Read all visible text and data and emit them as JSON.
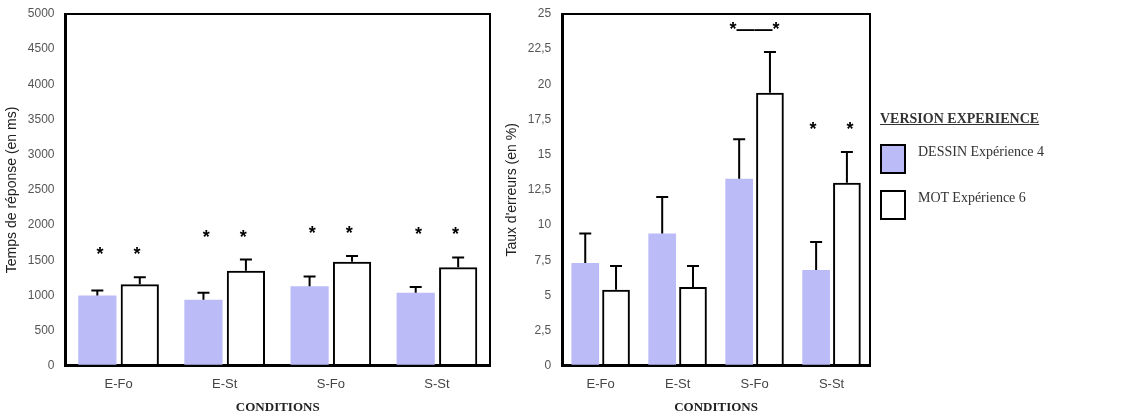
{
  "chart_data": [
    {
      "type": "bar",
      "categories": [
        "E-Fo",
        "E-St",
        "S-Fo",
        "S-St"
      ],
      "xlabel": "CONDITIONS",
      "ylabel": "Temps de réponse (en ms)",
      "ylim": [
        0,
        5000
      ],
      "yticks": [
        0,
        500,
        1000,
        1500,
        2000,
        2500,
        3000,
        3500,
        4000,
        4500,
        5000
      ],
      "grid": false,
      "series": [
        {
          "color": "#bbbbf8",
          "values": [
            1000,
            940,
            1130,
            1040
          ],
          "errors": [
            [
              1000,
              1070
            ],
            [
              940,
              1040
            ],
            [
              1130,
              1270
            ],
            [
              1040,
              1120
            ]
          ]
        },
        {
          "color": "#000000",
          "values": [
            1160,
            1350,
            1480,
            1400
          ],
          "errors": [
            [
              1160,
              1260
            ],
            [
              1350,
              1510
            ],
            [
              1480,
              1560
            ],
            [
              1400,
              1540
            ]
          ]
        }
      ],
      "annotations": [
        "*      *",
        "*      *",
        "*      *",
        "*      *"
      ]
    },
    {
      "type": "bar",
      "categories": [
        "E-Fo",
        "E-St",
        "S-Fo",
        "S-St"
      ],
      "xlabel": "CONDITIONS",
      "ylabel": "Taux d'erreurs (en %)",
      "ylim": [
        0,
        25
      ],
      "yticks": [
        0,
        {
          "value": 2.5,
          "label": "2,5"
        },
        5,
        {
          "value": 7.5,
          "label": "7,5"
        },
        10,
        {
          "value": 12.5,
          "label": "12,5"
        },
        15,
        {
          "value": 17.5,
          "label": "17,5"
        },
        20,
        {
          "value": 22.5,
          "label": "22,5"
        },
        25
      ],
      "grid": false,
      "legend": "right",
      "legend_title": "VERSION EXPERIENCE",
      "series": [
        {
          "name": "DESSIN Expérience 4",
          "color": "#bbbbf8",
          "values": [
            7.3,
            9.4,
            13.3,
            6.8
          ],
          "errors": [
            [
              7.3,
              9.4
            ],
            [
              9.4,
              12.0
            ],
            [
              13.3,
              16.1
            ],
            [
              6.8,
              8.8
            ]
          ]
        },
        {
          "name": "MOT Expérience 6",
          "color": "#000000",
          "values": [
            5.4,
            5.6,
            19.4,
            13.0
          ],
          "errors": [
            [
              5.4,
              7.1
            ],
            [
              5.6,
              7.1
            ],
            [
              19.4,
              22.3
            ],
            [
              13.0,
              15.2
            ]
          ]
        }
      ],
      "annotations": [
        "*——*",
        "*      *"
      ]
    }
  ]
}
